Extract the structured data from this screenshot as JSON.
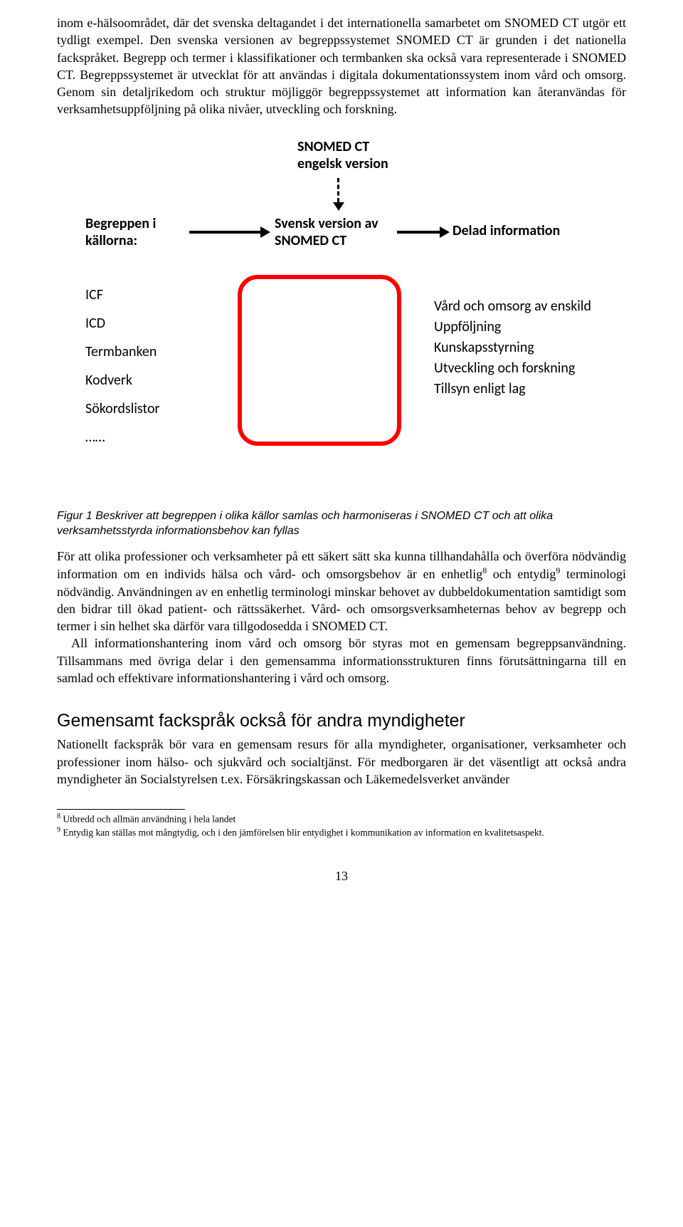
{
  "para1": "inom e-hälsoområdet, där det svenska deltagandet i det internationella samarbetet om SNOMED CT utgör ett tydligt exempel. Den svenska versionen av begreppssystemet SNOMED CT är grunden i det nationella fackspråket. Begrepp och termer i klassifikationer och termbanken ska också vara representerade i SNOMED CT. Begreppssystemet är utvecklat för att användas i digitala dokumentationssystem inom vård och omsorg. Genom sin detaljrikedom och struktur möjliggör begreppssystemet att information kan återanvändas för verksamhetsuppföljning på olika nivåer, utveckling och forskning.",
  "diagram": {
    "top1": "SNOMED CT",
    "top2": "engelsk version",
    "left1": "Begreppen i",
    "left2": "källorna:",
    "mid1": "Svensk version av",
    "mid2": "SNOMED CT",
    "right": "Delad information",
    "sources": [
      "ICF",
      "ICD",
      "Termbanken",
      "Kodverk",
      "Sökordslistor",
      "……"
    ],
    "dests": [
      "Vård och omsorg av enskild",
      "Uppföljning",
      "Kunskapsstyrning",
      "Utveckling och forskning",
      "Tillsyn enligt lag"
    ],
    "border_color": "#ff0000"
  },
  "caption": "Figur 1 Beskriver att begreppen i olika källor samlas och harmoniseras i SNOMED CT och att olika verksamhetsstyrda informationsbehov kan fyllas",
  "para2_pre": "För att olika professioner och verksamheter på ett säkert sätt ska kunna tillhandahålla och överföra nödvändig information om en individs hälsa och vård- och omsorgsbehov är en enhetlig",
  "para2_mid": " och entydig",
  "para2_post": " terminologi nödvändig. Användningen av en enhetlig terminologi minskar behovet av dubbeldokumentation samtidigt som den bidrar till ökad patient- och rättssäkerhet. Vård- och omsorgsverksamheternas behov av begrepp och termer i sin helhet ska därför vara tillgodosedda i SNOMED CT.",
  "para3": "All informationshantering inom vård och omsorg bör styras mot en gemensam begreppsanvändning. Tillsammans med övriga delar i den gemensamma informationsstrukturen finns förutsättningarna till en samlad och effektivare informationshantering i vård och omsorg.",
  "heading": "Gemensamt fackspråk också för andra myndigheter",
  "para4": "Nationellt fackspråk bör vara en gemensam resurs för alla myndigheter, organisationer, verksamheter och professioner inom hälso- och sjukvård och socialtjänst. För medborgaren är det väsentligt att också andra myndigheter än Socialstyrelsen t.ex. Försäkringskassan och Läkemedelsverket använder",
  "fn8_num": "8",
  "fn8": " Utbredd och allmän användning i hela landet",
  "fn9_num": "9",
  "fn9": " Entydig kan ställas mot mångtydig, och i den jämförelsen blir entydighet i kommunikation av information en kvalitetsaspekt.",
  "pagenum": "13"
}
